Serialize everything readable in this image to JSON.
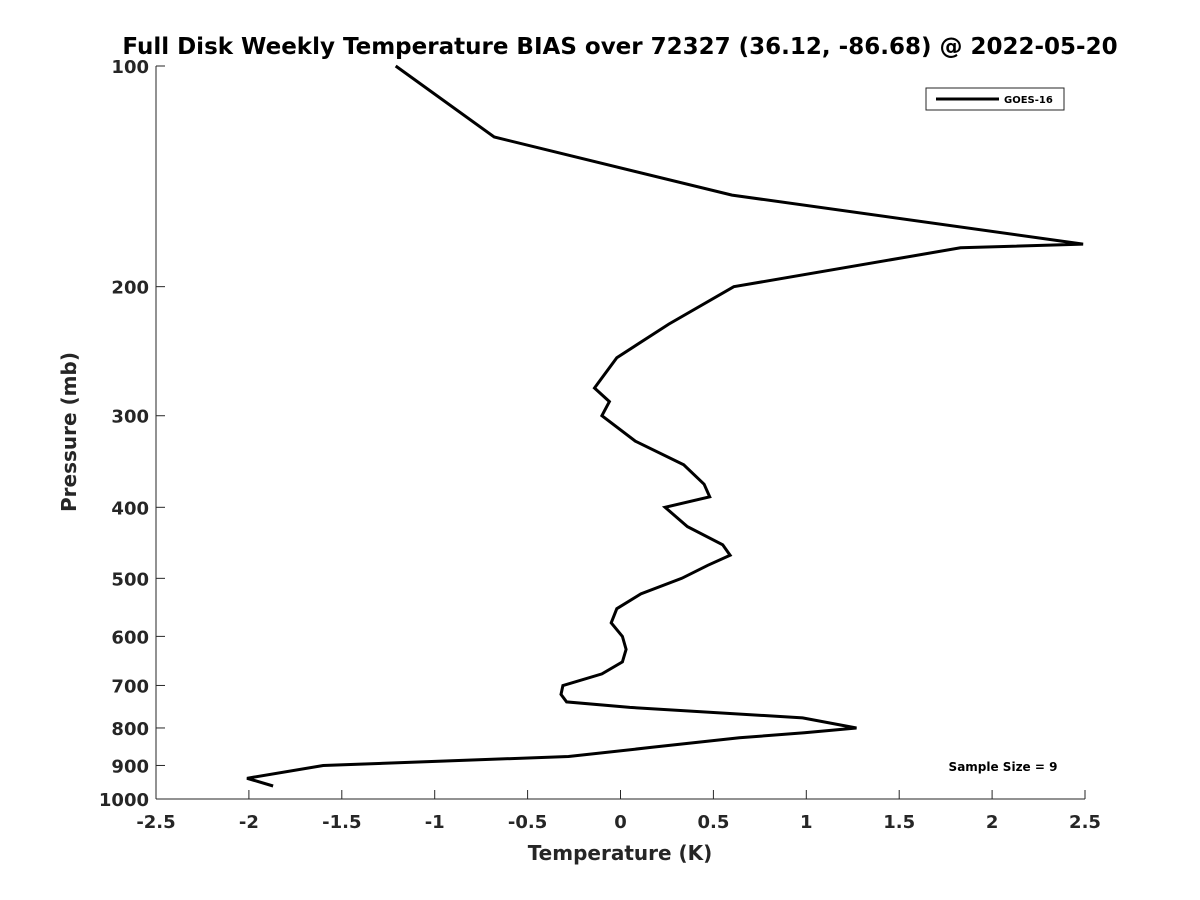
{
  "chart_data": {
    "type": "line",
    "title": "Full Disk Weekly Temperature BIAS over 72327 (36.12, -86.68) @ 2022-05-20",
    "xlabel": "Temperature (K)",
    "ylabel": "Pressure (mb)",
    "xlim": [
      -2.5,
      2.5
    ],
    "ylim": [
      100,
      1000
    ],
    "y_scale": "log",
    "y_reversed": true,
    "x_ticks": [
      -2.5,
      -2,
      -1.5,
      -1,
      -0.5,
      0,
      0.5,
      1,
      1.5,
      2,
      2.5
    ],
    "x_tick_labels": [
      "-2.5",
      "-2",
      "-1.5",
      "-1",
      "-0.5",
      "0",
      "0.5",
      "1",
      "1.5",
      "2",
      "2.5"
    ],
    "y_ticks": [
      100,
      200,
      300,
      400,
      500,
      600,
      700,
      800,
      900,
      1000
    ],
    "y_tick_labels": [
      "100",
      "200",
      "300",
      "400",
      "500",
      "600",
      "700",
      "800",
      "900",
      "1000"
    ],
    "grid": false,
    "legend_position": "top-right",
    "series": [
      {
        "name": "GOES-16",
        "color": "#000000",
        "points": [
          [
            -1.21,
            100
          ],
          [
            -0.68,
            125
          ],
          [
            0.6,
            150
          ],
          [
            2.49,
            175
          ],
          [
            1.83,
            177
          ],
          [
            0.61,
            200
          ],
          [
            0.26,
            225
          ],
          [
            -0.02,
            250
          ],
          [
            -0.14,
            275
          ],
          [
            -0.06,
            287
          ],
          [
            -0.1,
            300
          ],
          [
            0.08,
            325
          ],
          [
            0.34,
            350
          ],
          [
            0.45,
            372
          ],
          [
            0.48,
            387
          ],
          [
            0.24,
            400
          ],
          [
            0.36,
            425
          ],
          [
            0.55,
            450
          ],
          [
            0.59,
            465
          ],
          [
            0.47,
            480
          ],
          [
            0.33,
            500
          ],
          [
            0.11,
            525
          ],
          [
            -0.02,
            550
          ],
          [
            -0.05,
            575
          ],
          [
            0.01,
            600
          ],
          [
            0.03,
            625
          ],
          [
            0.01,
            650
          ],
          [
            -0.1,
            675
          ],
          [
            -0.31,
            700
          ],
          [
            -0.32,
            720
          ],
          [
            -0.29,
            737
          ],
          [
            0.05,
            750
          ],
          [
            0.98,
            775
          ],
          [
            1.27,
            800
          ],
          [
            0.99,
            812
          ],
          [
            0.64,
            825
          ],
          [
            0.17,
            850
          ],
          [
            -0.28,
            875
          ],
          [
            -1.6,
            900
          ],
          [
            -2.01,
            937
          ],
          [
            -1.87,
            960
          ]
        ]
      }
    ],
    "annotation": "Sample Size = 9"
  }
}
